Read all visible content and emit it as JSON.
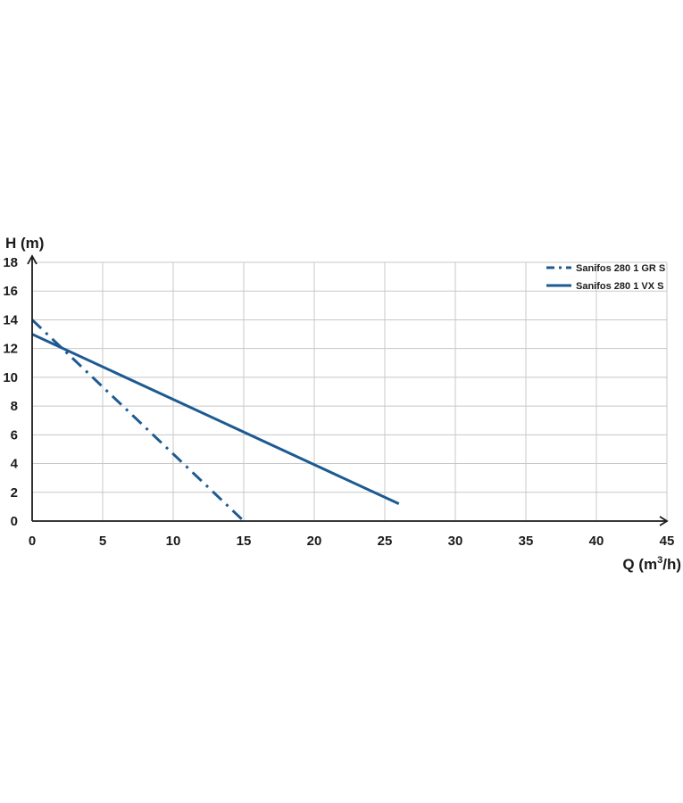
{
  "chart_data": {
    "type": "line",
    "ylabel": "H (m)",
    "xlabel_main": "Q (m",
    "xlabel_sup": "3",
    "xlabel_end": "/h)",
    "xlim": [
      0,
      45
    ],
    "ylim": [
      0,
      18
    ],
    "x_ticks": [
      "0",
      "5",
      "10",
      "15",
      "20",
      "25",
      "30",
      "35",
      "40",
      "45"
    ],
    "y_ticks": [
      "0",
      "2",
      "4",
      "6",
      "8",
      "10",
      "12",
      "14",
      "16",
      "18"
    ],
    "grid": true,
    "legend_position": "top-right",
    "series": [
      {
        "name": "Sanifos 280 1 GR S",
        "style": "dash-dot",
        "color": "#1d5a91",
        "points": [
          [
            0,
            14
          ],
          [
            15,
            0
          ]
        ]
      },
      {
        "name": "Sanifos 280 1 VX S",
        "style": "solid",
        "color": "#1d5a91",
        "points": [
          [
            0,
            13
          ],
          [
            26,
            1.2
          ]
        ]
      }
    ],
    "colors": {
      "grid": "#c8c8c8",
      "axis": "#1b1b1b"
    }
  }
}
